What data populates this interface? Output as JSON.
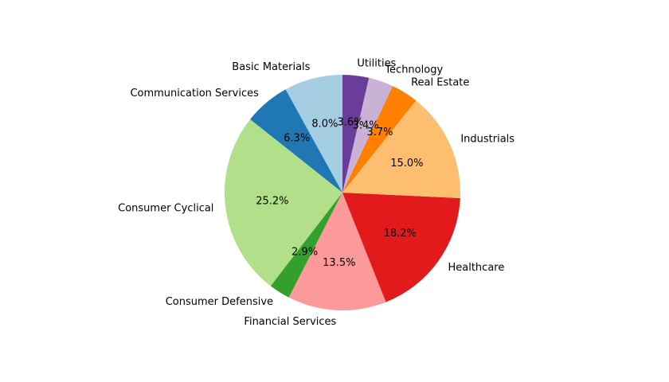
{
  "chart_data": {
    "type": "pie",
    "title": "",
    "start": "top",
    "direction": "counterclockwise",
    "slices": [
      {
        "label": "Basic Materials",
        "value": 8.0,
        "pct_text": "8.0%",
        "color": "#a6cee3"
      },
      {
        "label": "Communication Services",
        "value": 6.3,
        "pct_text": "6.3%",
        "color": "#1f78b4"
      },
      {
        "label": "Consumer Cyclical",
        "value": 25.2,
        "pct_text": "25.2%",
        "color": "#b2df8a"
      },
      {
        "label": "Consumer Defensive",
        "value": 2.9,
        "pct_text": "2.9%",
        "color": "#33a02c"
      },
      {
        "label": "Financial Services",
        "value": 13.5,
        "pct_text": "13.5%",
        "color": "#fb9a99"
      },
      {
        "label": "Healthcare",
        "value": 18.2,
        "pct_text": "18.2%",
        "color": "#e31a1c"
      },
      {
        "label": "Industrials",
        "value": 15.0,
        "pct_text": "15.0%",
        "color": "#fdbf6f"
      },
      {
        "label": "Real Estate",
        "value": 3.7,
        "pct_text": "3.7%",
        "color": "#ff7f00"
      },
      {
        "label": "Technology",
        "value": 3.4,
        "pct_text": "3.4%",
        "color": "#cab2d6"
      },
      {
        "label": "Utilities",
        "value": 3.6,
        "pct_text": "3.6%",
        "color": "#6a3d9a"
      }
    ]
  }
}
